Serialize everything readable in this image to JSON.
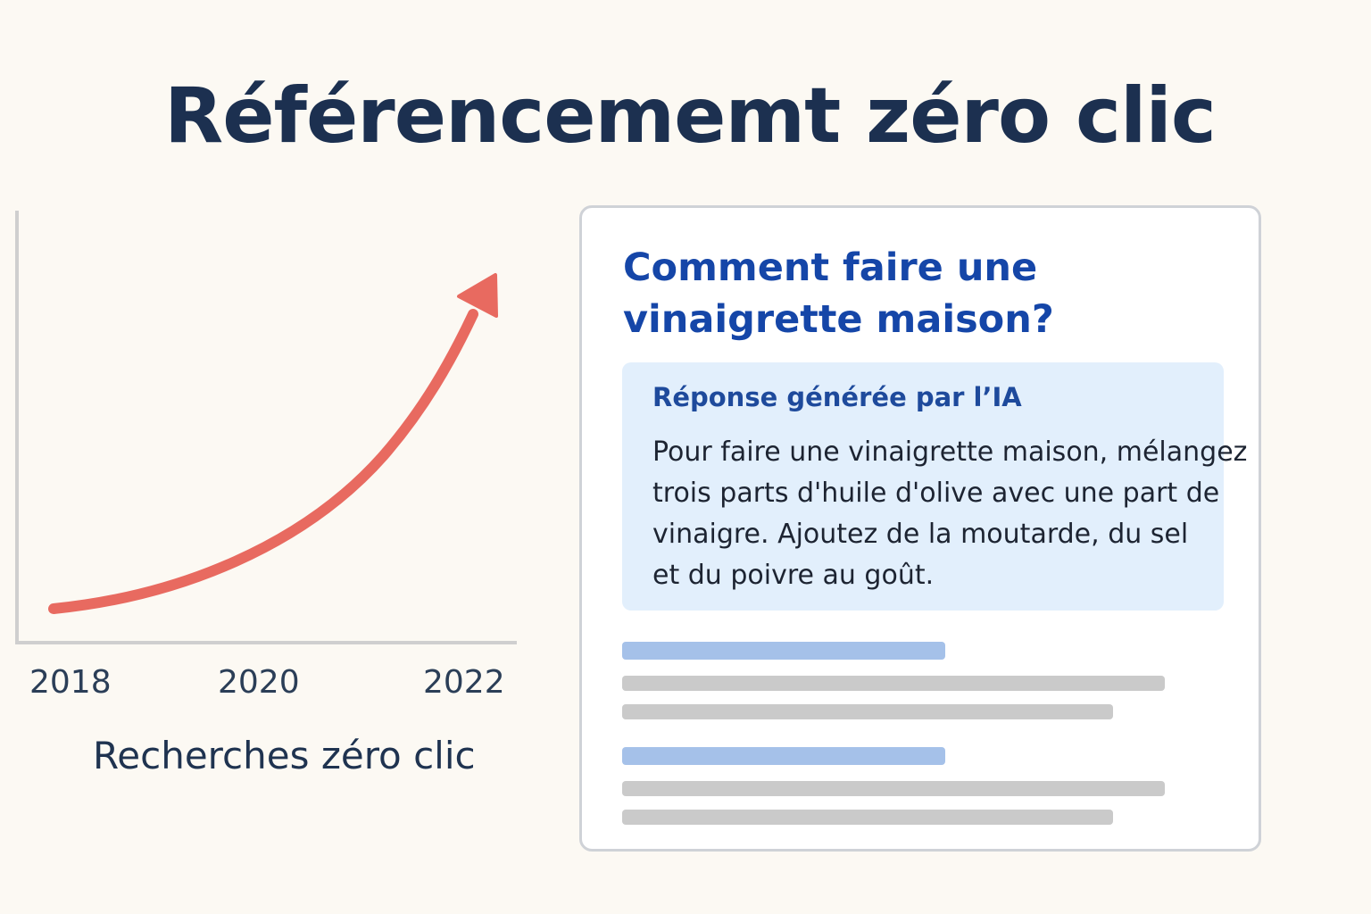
{
  "title": "Référencememt zéro clic",
  "chart": {
    "tick_labels": [
      "2018",
      "2020",
      "2022"
    ],
    "caption": "Recherches zéro clic",
    "axis_color": "#cfcfcf",
    "arrow_color": "#e86a60"
  },
  "card": {
    "question_lines": [
      "Comment faire une",
      "vinaigrette maison?"
    ],
    "ai_label": "Réponse générée par l’IA",
    "ai_text_lines": [
      "Pour faire une vinaigrette maison, mélangez",
      "trois parts d'huile d'olive avec une part de",
      "vinaigre. Ajoutez de la moutarde, du sel",
      "et du poivre au goût."
    ],
    "colors": {
      "question": "#1546a8",
      "ai_box": "#e2effc",
      "link_placeholder": "#a5c1e9",
      "text_placeholder": "#cacaca"
    }
  }
}
